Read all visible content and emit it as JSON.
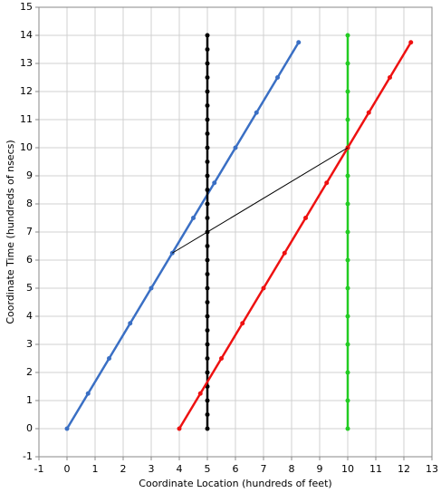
{
  "chart_data": {
    "type": "line",
    "xlabel": "Coordinate Location (hundreds of feet)",
    "ylabel": "Coordinate Time (hundreds of nsecs)",
    "xlim": [
      -1,
      13
    ],
    "ylim": [
      -1,
      15
    ],
    "xticks": [
      -1,
      0,
      1,
      2,
      3,
      4,
      5,
      6,
      7,
      8,
      9,
      10,
      11,
      12,
      13
    ],
    "yticks": [
      -1,
      0,
      1,
      2,
      3,
      4,
      5,
      6,
      7,
      8,
      9,
      10,
      11,
      12,
      13,
      14,
      15
    ],
    "grid": true,
    "series": [
      {
        "color": "#3a6fc4",
        "markers": true,
        "x": [
          0,
          0.75,
          1.5,
          2.25,
          3,
          3.75,
          4.5,
          5.25,
          6,
          6.75,
          7.5,
          8.25
        ],
        "values": [
          0,
          1.25,
          2.5,
          3.75,
          5,
          6.25,
          7.5,
          8.75,
          10,
          11.25,
          12.5,
          13.75
        ]
      },
      {
        "color": "#000000",
        "markers": true,
        "x": [
          5,
          5,
          5,
          5,
          5,
          5,
          5,
          5,
          5,
          5,
          5,
          5,
          5,
          5,
          5,
          5,
          5,
          5,
          5,
          5,
          5,
          5,
          5,
          5,
          5,
          5,
          5,
          5,
          5
        ],
        "values": [
          0,
          0.5,
          1,
          1.5,
          2,
          2.5,
          3,
          3.5,
          4,
          4.5,
          5,
          5.5,
          6,
          6.5,
          7,
          7.5,
          8,
          8.5,
          9,
          9.5,
          10,
          10.5,
          11,
          11.5,
          12,
          12.5,
          13,
          13.5,
          14
        ]
      },
      {
        "color": "#22cc22",
        "markers": true,
        "x": [
          10,
          10,
          10,
          10,
          10,
          10,
          10,
          10,
          10,
          10,
          10,
          10,
          10,
          10,
          10
        ],
        "values": [
          0,
          1,
          2,
          3,
          4,
          5,
          6,
          7,
          8,
          9,
          10,
          11,
          12,
          13,
          14
        ]
      },
      {
        "color": "#ee1111",
        "markers": true,
        "x": [
          4,
          4.75,
          5.5,
          6.25,
          7,
          7.75,
          8.5,
          9.25,
          10,
          10.75,
          11.5,
          12.25
        ],
        "values": [
          0,
          1.25,
          2.5,
          3.75,
          5,
          6.25,
          7.5,
          8.75,
          10,
          11.25,
          12.5,
          13.75
        ]
      },
      {
        "color": "#000000",
        "markers": false,
        "x": [
          3.75,
          10
        ],
        "values": [
          6.25,
          10
        ]
      }
    ]
  }
}
